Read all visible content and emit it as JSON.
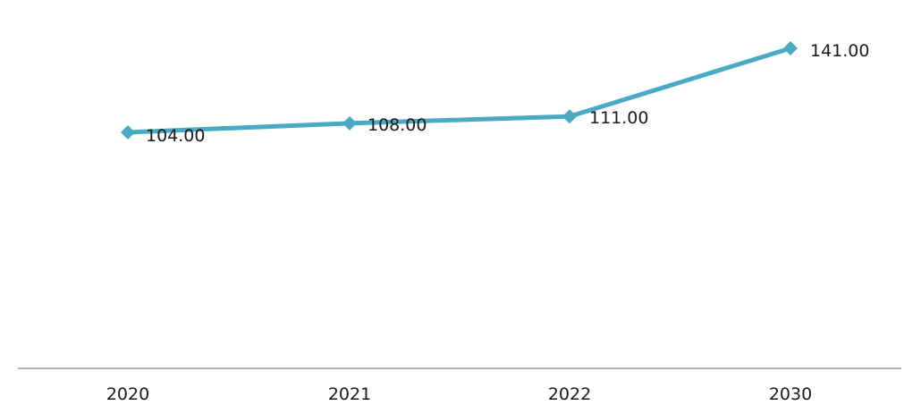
{
  "chart_data": {
    "type": "line",
    "categories": [
      "2020",
      "2021",
      "2022",
      "2030"
    ],
    "series": [
      {
        "values": [
          104.0,
          108.0,
          111.0,
          141.0
        ],
        "labels": [
          "104.00",
          "108.00",
          "111.00",
          "141.00"
        ],
        "color": "#4aaac4",
        "marker": "diamond"
      }
    ],
    "title": "",
    "xlabel": "",
    "ylabel": "",
    "y_axis_visible": false,
    "grid": false,
    "legend": "none"
  },
  "colors": {
    "series": "#4aaac4",
    "axis": "#999999",
    "text": "#1a1a1a"
  }
}
